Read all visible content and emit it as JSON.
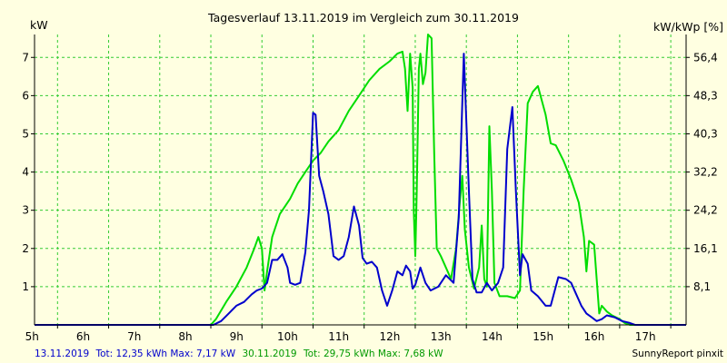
{
  "chart_data": {
    "type": "line",
    "title": "Tagesverlauf 13.11.2019 im Vergleich zum 30.11.2019",
    "ylabel_left": "kW",
    "ylabel_right": "kW/kWp [%]",
    "x_ticks": [
      "5h",
      "6h",
      "7h",
      "8h",
      "9h",
      "10h",
      "11h",
      "12h",
      "13h",
      "14h",
      "15h",
      "16h",
      "17h"
    ],
    "x_tick_hours": [
      5,
      6,
      7,
      8,
      9,
      10,
      11,
      12,
      13,
      14,
      15,
      16,
      17
    ],
    "y_ticks_left": [
      "1",
      "2",
      "3",
      "4",
      "5",
      "6",
      "7"
    ],
    "y_tick_values_left": [
      1,
      2,
      3,
      4,
      5,
      6,
      7
    ],
    "y_ticks_right": [
      "8,1",
      "16,1",
      "24,2",
      "32,2",
      "40,3",
      "48,3",
      "56,4"
    ],
    "xlim": [
      4.55,
      17.3
    ],
    "ylim": [
      0,
      7.6
    ],
    "grid": true,
    "colors": {
      "background": "#ffffe1",
      "grid": "#33cc33",
      "axis": "#000000",
      "series1": "#0000cc",
      "series2": "#00dd00"
    },
    "series": [
      {
        "name": "13.11.2019",
        "color": "#0000cc",
        "points": [
          [
            4.55,
            0
          ],
          [
            8.05,
            0
          ],
          [
            8.2,
            0.1
          ],
          [
            8.35,
            0.3
          ],
          [
            8.5,
            0.5
          ],
          [
            8.65,
            0.6
          ],
          [
            8.8,
            0.8
          ],
          [
            8.9,
            0.9
          ],
          [
            9.0,
            0.95
          ],
          [
            9.1,
            1.1
          ],
          [
            9.2,
            1.7
          ],
          [
            9.3,
            1.7
          ],
          [
            9.4,
            1.85
          ],
          [
            9.5,
            1.5
          ],
          [
            9.55,
            1.1
          ],
          [
            9.65,
            1.05
          ],
          [
            9.75,
            1.1
          ],
          [
            9.85,
            1.9
          ],
          [
            9.92,
            3.0
          ],
          [
            10.0,
            5.55
          ],
          [
            10.05,
            5.5
          ],
          [
            10.12,
            3.9
          ],
          [
            10.2,
            3.5
          ],
          [
            10.3,
            2.9
          ],
          [
            10.4,
            1.8
          ],
          [
            10.5,
            1.7
          ],
          [
            10.6,
            1.8
          ],
          [
            10.7,
            2.3
          ],
          [
            10.8,
            3.1
          ],
          [
            10.9,
            2.6
          ],
          [
            10.97,
            1.75
          ],
          [
            11.05,
            1.6
          ],
          [
            11.15,
            1.65
          ],
          [
            11.25,
            1.5
          ],
          [
            11.35,
            0.9
          ],
          [
            11.45,
            0.5
          ],
          [
            11.55,
            0.9
          ],
          [
            11.65,
            1.4
          ],
          [
            11.75,
            1.3
          ],
          [
            11.82,
            1.55
          ],
          [
            11.9,
            1.4
          ],
          [
            11.95,
            0.95
          ],
          [
            12.0,
            1.05
          ],
          [
            12.1,
            1.5
          ],
          [
            12.2,
            1.1
          ],
          [
            12.3,
            0.9
          ],
          [
            12.45,
            1.0
          ],
          [
            12.6,
            1.3
          ],
          [
            12.75,
            1.1
          ],
          [
            12.85,
            2.8
          ],
          [
            12.95,
            7.1
          ],
          [
            13.05,
            3.5
          ],
          [
            13.12,
            1.2
          ],
          [
            13.2,
            0.85
          ],
          [
            13.3,
            0.85
          ],
          [
            13.4,
            1.1
          ],
          [
            13.5,
            0.9
          ],
          [
            13.62,
            1.1
          ],
          [
            13.72,
            1.5
          ],
          [
            13.8,
            4.6
          ],
          [
            13.9,
            5.7
          ],
          [
            13.97,
            3.5
          ],
          [
            14.05,
            1.3
          ],
          [
            14.1,
            1.85
          ],
          [
            14.2,
            1.6
          ],
          [
            14.27,
            0.9
          ],
          [
            14.4,
            0.75
          ],
          [
            14.55,
            0.5
          ],
          [
            14.65,
            0.5
          ],
          [
            14.8,
            1.25
          ],
          [
            14.95,
            1.2
          ],
          [
            15.05,
            1.1
          ],
          [
            15.15,
            0.8
          ],
          [
            15.25,
            0.5
          ],
          [
            15.35,
            0.3
          ],
          [
            15.45,
            0.2
          ],
          [
            15.55,
            0.1
          ],
          [
            15.65,
            0.15
          ],
          [
            15.75,
            0.25
          ],
          [
            15.9,
            0.2
          ],
          [
            16.05,
            0.1
          ],
          [
            16.2,
            0.05
          ],
          [
            16.3,
            0
          ],
          [
            17.3,
            0
          ]
        ]
      },
      {
        "name": "30.11.2019",
        "color": "#00dd00",
        "points": [
          [
            4.55,
            0
          ],
          [
            8.0,
            0
          ],
          [
            8.1,
            0.15
          ],
          [
            8.3,
            0.6
          ],
          [
            8.5,
            1.0
          ],
          [
            8.7,
            1.5
          ],
          [
            8.85,
            2.0
          ],
          [
            8.93,
            2.3
          ],
          [
            9.0,
            2.0
          ],
          [
            9.05,
            0.9
          ],
          [
            9.1,
            1.4
          ],
          [
            9.2,
            2.3
          ],
          [
            9.35,
            2.9
          ],
          [
            9.55,
            3.3
          ],
          [
            9.7,
            3.7
          ],
          [
            9.85,
            4.0
          ],
          [
            10.0,
            4.3
          ],
          [
            10.15,
            4.5
          ],
          [
            10.3,
            4.8
          ],
          [
            10.5,
            5.1
          ],
          [
            10.7,
            5.6
          ],
          [
            10.9,
            6.0
          ],
          [
            11.1,
            6.4
          ],
          [
            11.3,
            6.7
          ],
          [
            11.5,
            6.9
          ],
          [
            11.65,
            7.1
          ],
          [
            11.75,
            7.15
          ],
          [
            11.8,
            6.7
          ],
          [
            11.85,
            5.6
          ],
          [
            11.9,
            7.1
          ],
          [
            11.95,
            6.2
          ],
          [
            11.97,
            3.0
          ],
          [
            12.0,
            1.8
          ],
          [
            12.03,
            3.5
          ],
          [
            12.07,
            6.7
          ],
          [
            12.1,
            7.1
          ],
          [
            12.15,
            6.3
          ],
          [
            12.2,
            6.6
          ],
          [
            12.25,
            7.6
          ],
          [
            12.32,
            7.5
          ],
          [
            12.37,
            4.5
          ],
          [
            12.42,
            2.0
          ],
          [
            12.5,
            1.8
          ],
          [
            12.6,
            1.5
          ],
          [
            12.7,
            1.2
          ],
          [
            12.8,
            2.0
          ],
          [
            12.87,
            3.2
          ],
          [
            12.92,
            3.9
          ],
          [
            12.97,
            2.5
          ],
          [
            13.05,
            1.5
          ],
          [
            13.15,
            0.95
          ],
          [
            13.25,
            1.5
          ],
          [
            13.3,
            2.6
          ],
          [
            13.35,
            1.2
          ],
          [
            13.4,
            1.0
          ],
          [
            13.45,
            5.2
          ],
          [
            13.5,
            3.5
          ],
          [
            13.55,
            1.1
          ],
          [
            13.65,
            0.75
          ],
          [
            13.8,
            0.75
          ],
          [
            13.95,
            0.7
          ],
          [
            14.05,
            0.9
          ],
          [
            14.12,
            3.5
          ],
          [
            14.2,
            5.8
          ],
          [
            14.3,
            6.1
          ],
          [
            14.4,
            6.25
          ],
          [
            14.55,
            5.5
          ],
          [
            14.65,
            4.75
          ],
          [
            14.75,
            4.7
          ],
          [
            14.9,
            4.3
          ],
          [
            15.05,
            3.8
          ],
          [
            15.2,
            3.2
          ],
          [
            15.3,
            2.3
          ],
          [
            15.35,
            1.4
          ],
          [
            15.4,
            2.2
          ],
          [
            15.5,
            2.1
          ],
          [
            15.55,
            1.2
          ],
          [
            15.6,
            0.3
          ],
          [
            15.65,
            0.5
          ],
          [
            15.75,
            0.35
          ],
          [
            15.85,
            0.25
          ],
          [
            16.0,
            0.15
          ],
          [
            16.1,
            0.05
          ],
          [
            16.2,
            0
          ],
          [
            17.3,
            0
          ]
        ]
      }
    ]
  },
  "footer": {
    "line1_date": "13.11.2019",
    "line1_stats": "Tot: 12,35 kWh Max: 7,17 kW",
    "line2_date": "30.11.2019",
    "line2_stats": "Tot: 29,75 kWh Max: 7,68 kW",
    "brand": "SunnyReport pinxit"
  }
}
